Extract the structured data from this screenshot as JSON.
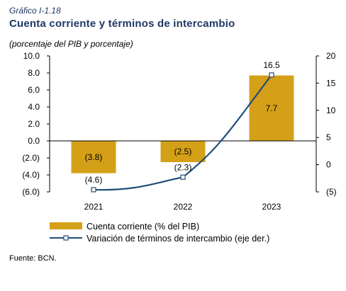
{
  "header": {
    "figure_label": "Gráfico I-1.18",
    "title": "Cuenta corriente y términos de intercambio",
    "subtitle": "(porcentaje del PIB y porcentaje)"
  },
  "footer": {
    "source": "Fuente: BCN."
  },
  "chart_data": {
    "type": "bar",
    "categories": [
      "2021",
      "2022",
      "2023"
    ],
    "series": [
      {
        "name": "Cuenta corriente (% del PIB)",
        "kind": "bar",
        "axis": "left",
        "values": [
          -3.8,
          -2.5,
          7.7
        ],
        "data_labels": [
          "(3.8)",
          "(2.5)",
          "7.7"
        ],
        "color": "#d4a017"
      },
      {
        "name": "Variación de términos de intercambio (eje der.)",
        "kind": "line",
        "axis": "right",
        "values": [
          -4.6,
          -2.3,
          16.5
        ],
        "data_labels": [
          "(4.6)",
          "(2.3)",
          "16.5"
        ],
        "color": "#1f4e79"
      }
    ],
    "left_axis": {
      "ylim": [
        -6,
        10
      ],
      "ticks": [
        10,
        8,
        6,
        4,
        2,
        0,
        -2,
        -4,
        -6
      ],
      "tick_labels": [
        "10.0",
        "8.0",
        "6.0",
        "4.0",
        "2.0",
        "0.0",
        "(2.0)",
        "(4.0)",
        "(6.0)"
      ]
    },
    "right_axis": {
      "ylim": [
        -5,
        20
      ],
      "ticks": [
        20,
        15,
        10,
        5,
        0,
        -5
      ],
      "tick_labels": [
        "20",
        "15",
        "10",
        "5",
        "0",
        "(5)"
      ]
    },
    "grid": false,
    "legend_position": "bottom-left"
  }
}
